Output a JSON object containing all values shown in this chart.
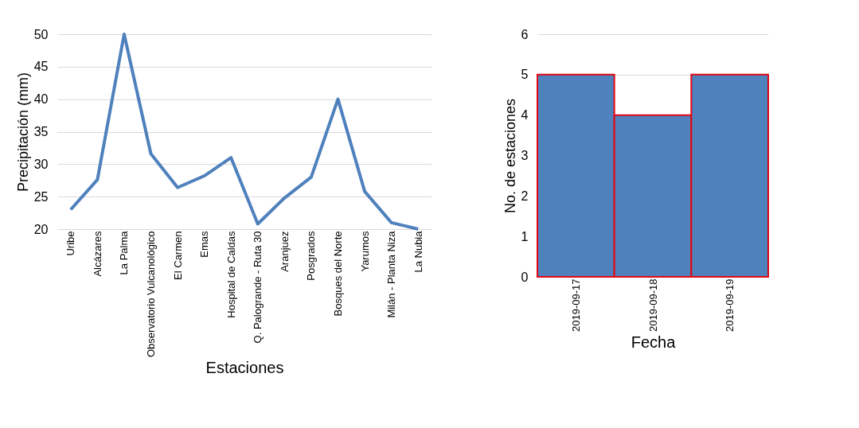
{
  "chart_data": [
    {
      "type": "line",
      "xlabel": "Estaciones",
      "ylabel": "Precipitación (mm)",
      "categories": [
        "Uribe",
        "Alcázares",
        "La Palma",
        "Observatorio Vulcanológico",
        "El Carmen",
        "Emas",
        "Hospital de Caldas",
        "Q. Palogrande - Ruta 30",
        "Aranjuez",
        "Posgrados",
        "Bosques del Norte",
        "Yarumos",
        "Milán - Planta Niza",
        "La Nubia"
      ],
      "series": [
        {
          "color": "#4f81bd",
          "values": [
            23,
            27.6,
            50,
            31.6,
            26.4,
            28.2,
            31,
            20.8,
            24.8,
            28,
            40,
            25.8,
            21,
            20
          ]
        }
      ],
      "ylim": [
        20,
        50
      ],
      "yticks": [
        20,
        25,
        30,
        35,
        40,
        45,
        50
      ],
      "grid": "y",
      "legend": false,
      "marker": "none",
      "line_style": "solid"
    },
    {
      "type": "bar",
      "xlabel": "Fecha",
      "ylabel": "No. de estaciones",
      "categories": [
        "2019-09-17",
        "2019-09-18",
        "2019-09-19"
      ],
      "series": [
        {
          "color": "#4f81bd",
          "values": [
            5,
            4,
            5
          ]
        }
      ],
      "ylim": [
        0,
        6
      ],
      "yticks": [
        0,
        1,
        2,
        3,
        4,
        5,
        6
      ],
      "grid": "y",
      "legend": false
    }
  ]
}
